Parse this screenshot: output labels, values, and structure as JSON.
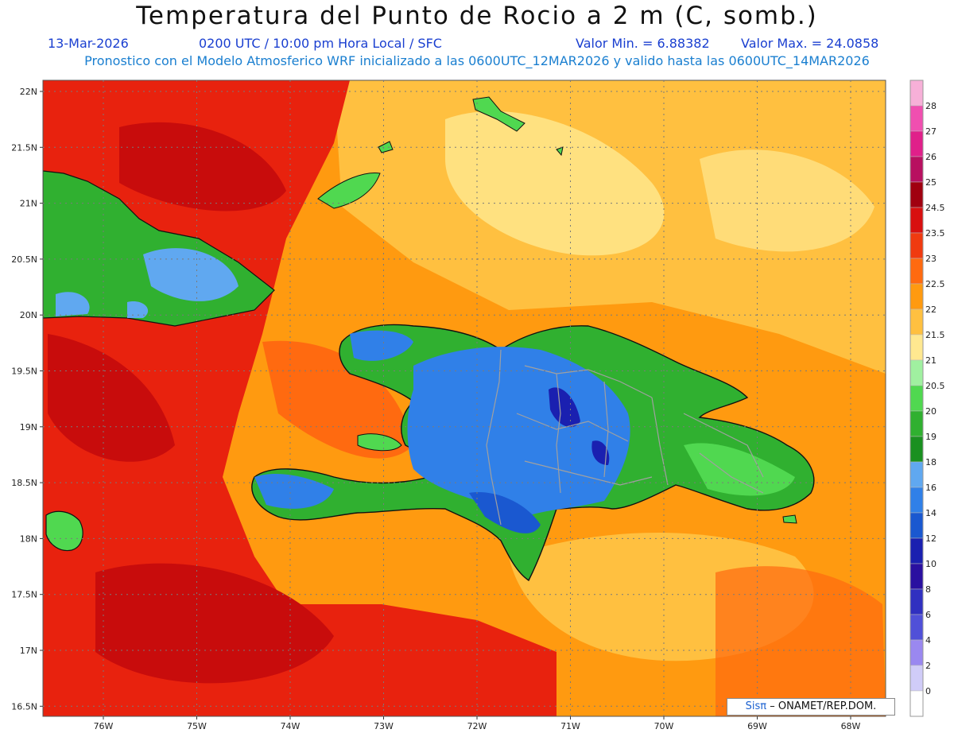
{
  "header": {
    "title": "Temperatura del Punto de Rocio a 2 m (C, somb.)",
    "date": "13-Mar-2026",
    "time": "0200 UTC / 10:00 pm Hora Local / SFC",
    "min": "Valor Min. = 6.88382",
    "max": "Valor Max. = 24.0858",
    "subtitle": "Pronostico con el Modelo Atmosferico WRF inicializado a las 0600UTC_12MAR2026 y valido hasta las  0600UTC_14MAR2026"
  },
  "axes": {
    "lat_labels": [
      "22N",
      "21.5N",
      "21N",
      "20.5N",
      "20N",
      "19.5N",
      "19N",
      "18.5N",
      "18N",
      "17.5N",
      "17N",
      "16.5N"
    ],
    "lon_labels": [
      "76W",
      "75W",
      "74W",
      "73W",
      "72W",
      "71W",
      "70W",
      "69W",
      "68W"
    ]
  },
  "colorbar": {
    "labels": [
      "28",
      "27",
      "26",
      "25",
      "24.5",
      "23.5",
      "23",
      "22.5",
      "22",
      "21.5",
      "21",
      "20.5",
      "20",
      "19",
      "18",
      "16",
      "14",
      "12",
      "10",
      "8",
      "6",
      "4",
      "2",
      "0"
    ],
    "colors": [
      "#f7b0d8",
      "#f04fb0",
      "#e0208a",
      "#b81060",
      "#a00010",
      "#d81010",
      "#f03a10",
      "#ff6a10",
      "#ff9a10",
      "#ffc040",
      "#ffe890",
      "#a0f0a0",
      "#50d850",
      "#30b030",
      "#1a9020",
      "#60a8f0",
      "#3080e8",
      "#1a58d0",
      "#1a20b0",
      "#2a10a0",
      "#3030c0",
      "#5050d8",
      "#9a88f0",
      "#d0ccf8",
      "#ffffff"
    ]
  },
  "credit": {
    "sis": "Sisπ",
    "org": "– ONAMET/REP.DOM."
  },
  "colors": {
    "ocean_red": "#e8220e",
    "ocean_darkred": "#c80c0c",
    "ocean_orange": "#ff6a10",
    "orange": "#ff9a10",
    "lightorange": "#ffc040",
    "yellow": "#ffe890",
    "land_green": "#30b030",
    "land_lightgreen": "#50d850",
    "land_blue": "#3080e8",
    "land_lightblue": "#60a8f0",
    "land_darkblue": "#1a20b0"
  }
}
